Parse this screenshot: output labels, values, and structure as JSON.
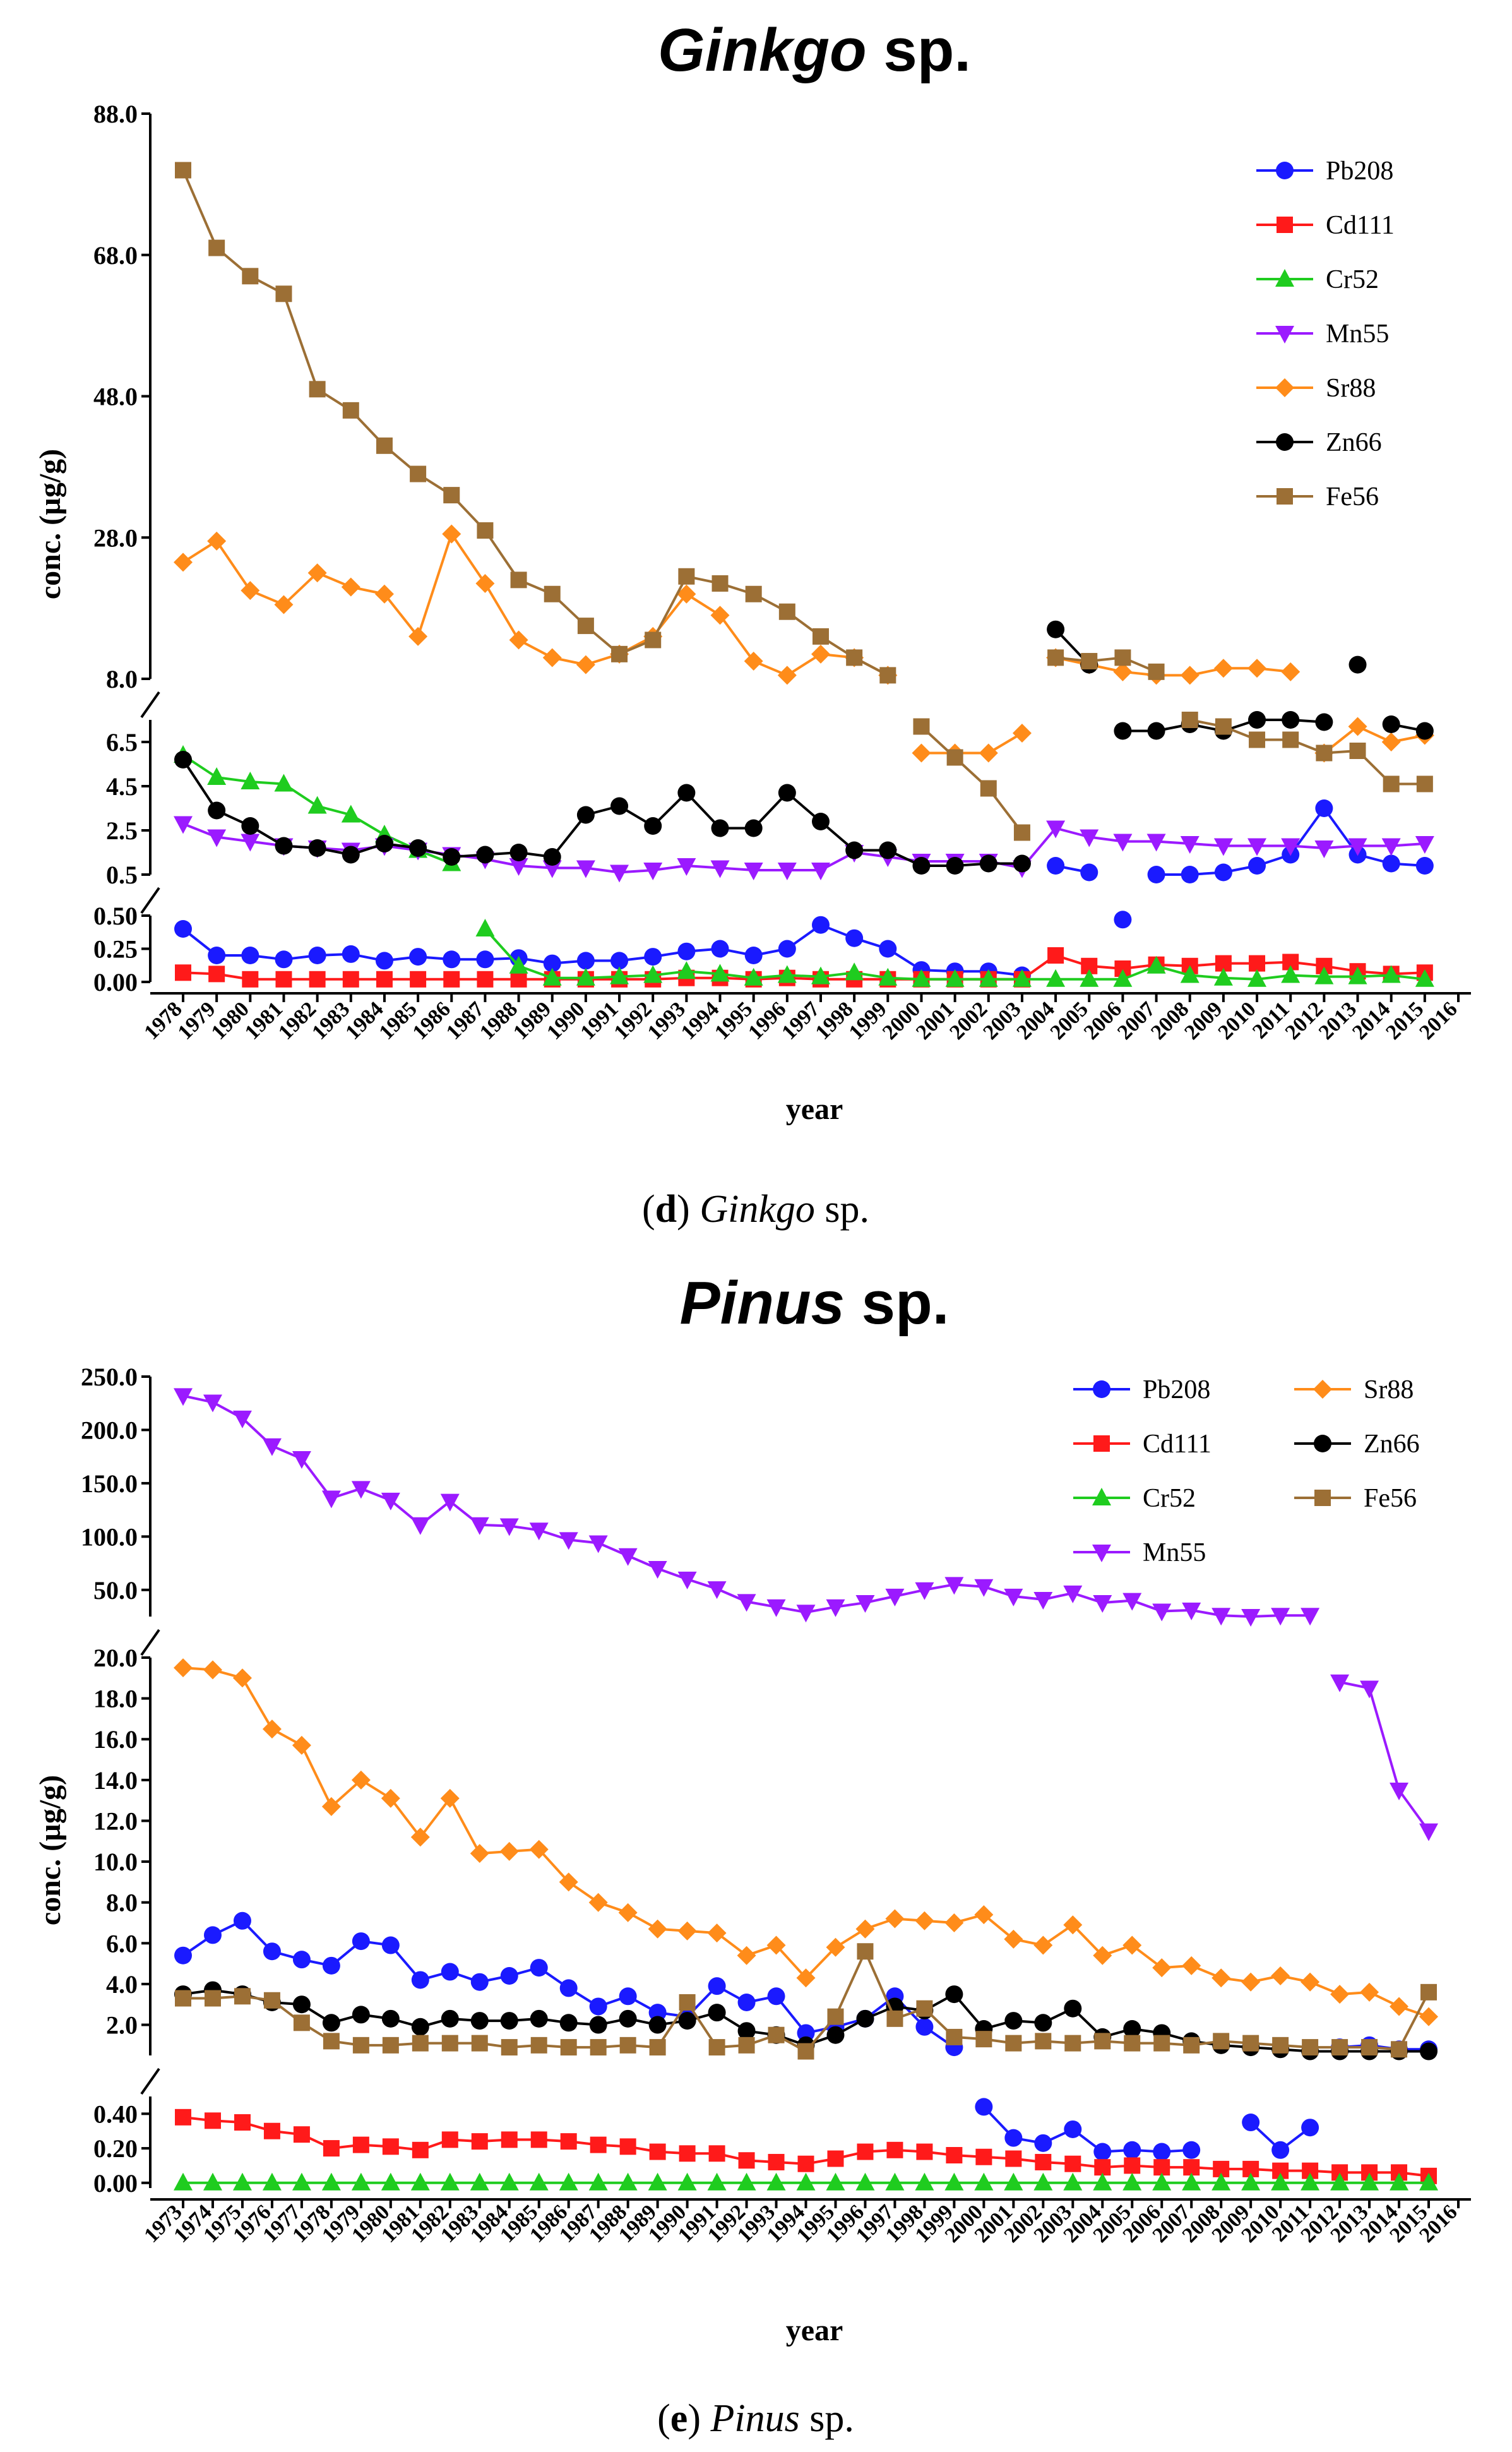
{
  "captions": [
    {
      "letter": "d",
      "genus": "Ginkgo",
      "suffix": " sp."
    },
    {
      "letter": "e",
      "genus": "Pinus",
      "suffix": " sp."
    }
  ],
  "chart_data": [
    {
      "type": "line",
      "title": "Ginkgo sp.",
      "title_genus": "Ginkgo",
      "title_suffix": " sp.",
      "xlabel": "year",
      "ylabel": "conc. (µg/g)",
      "categories": [
        "1978",
        "1979",
        "1980",
        "1981",
        "1982",
        "1983",
        "1984",
        "1985",
        "1986",
        "1987",
        "1988",
        "1989",
        "1990",
        "1991",
        "1992",
        "1993",
        "1994",
        "1995",
        "1996",
        "1997",
        "1998",
        "1999",
        "2000",
        "2001",
        "2002",
        "2003",
        "2004",
        "2005",
        "2006",
        "2007",
        "2008",
        "2009",
        "2010",
        "2011",
        "2012",
        "2013",
        "2014",
        "2015",
        "2016"
      ],
      "segments": [
        {
          "ylim": [
            8.0,
            88.0
          ],
          "ticks": [
            8.0,
            28.0,
            48.0,
            68.0,
            88.0
          ],
          "tick_labels": [
            "8.0",
            "28.0",
            "48.0",
            "68.0",
            "88.0"
          ]
        },
        {
          "ylim": [
            0.5,
            7.5
          ],
          "ticks": [
            0.5,
            2.5,
            4.5,
            6.5
          ],
          "tick_labels": [
            "0.5",
            "2.5",
            "4.5",
            "6.5"
          ]
        },
        {
          "ylim": [
            0.0,
            0.5
          ],
          "ticks": [
            0.0,
            0.25,
            0.5
          ],
          "tick_labels": [
            "0.00",
            "0.25",
            "0.50"
          ]
        }
      ],
      "legend": [
        "Pb208",
        "Cd111",
        "Cr52",
        "Mn55",
        "Sr88",
        "Zn66",
        "Fe56"
      ],
      "legend_position": "top-right",
      "series": [
        {
          "name": "Pb208",
          "color": "#1a1aff",
          "marker": "circle",
          "values": [
            0.4,
            0.2,
            0.2,
            0.17,
            0.2,
            0.21,
            0.16,
            0.19,
            0.17,
            0.17,
            0.18,
            0.14,
            0.16,
            0.16,
            0.19,
            0.23,
            0.25,
            0.2,
            0.25,
            0.43,
            0.33,
            0.25,
            0.09,
            0.08,
            0.08,
            0.05,
            0.9,
            0.6,
            0.47,
            0.5,
            0.5,
            0.6,
            0.9,
            1.4,
            3.5,
            1.4,
            1.0,
            0.9,
            null
          ]
        },
        {
          "name": "Cd111",
          "color": "#ff1a1a",
          "marker": "square",
          "values": [
            0.07,
            0.06,
            0.02,
            0.02,
            0.02,
            0.02,
            0.02,
            0.02,
            0.02,
            0.02,
            0.02,
            0.02,
            0.02,
            0.02,
            0.02,
            0.03,
            0.03,
            0.02,
            0.03,
            0.02,
            0.02,
            0.02,
            0.02,
            0.02,
            0.02,
            0.02,
            0.2,
            0.12,
            0.1,
            0.13,
            0.12,
            0.14,
            0.14,
            0.15,
            0.12,
            0.08,
            0.06,
            0.07,
            null
          ]
        },
        {
          "name": "Cr52",
          "color": "#1fcc1f",
          "marker": "triangle",
          "values": [
            5.9,
            4.9,
            4.7,
            4.6,
            3.6,
            3.2,
            2.3,
            1.6,
            1.0,
            0.4,
            0.12,
            0.03,
            0.03,
            0.04,
            0.05,
            0.08,
            0.06,
            0.03,
            0.05,
            0.04,
            0.07,
            0.03,
            0.02,
            0.02,
            0.02,
            0.02,
            0.02,
            0.02,
            0.02,
            0.12,
            0.05,
            0.03,
            0.02,
            0.05,
            0.04,
            0.04,
            0.05,
            0.02,
            null
          ]
        },
        {
          "name": "Mn55",
          "color": "#9b1aff",
          "marker": "triangle-down",
          "values": [
            2.8,
            2.2,
            2.0,
            1.8,
            1.7,
            1.6,
            1.8,
            1.6,
            1.4,
            1.2,
            0.9,
            0.8,
            0.8,
            0.6,
            0.7,
            0.9,
            0.8,
            0.7,
            0.7,
            0.7,
            1.5,
            1.3,
            1.1,
            1.1,
            1.1,
            0.8,
            2.6,
            2.2,
            2.0,
            2.0,
            1.9,
            1.8,
            1.8,
            1.8,
            1.7,
            1.8,
            1.8,
            1.9,
            null
          ]
        },
        {
          "name": "Sr88",
          "color": "#ff8c1a",
          "marker": "diamond",
          "values": [
            24.5,
            27.5,
            20.5,
            18.5,
            23.0,
            21.0,
            20.0,
            14.0,
            28.5,
            21.5,
            13.5,
            11.0,
            10.0,
            11.5,
            14.0,
            20.0,
            17.0,
            10.5,
            8.5,
            11.5,
            11.0,
            8.5,
            6.0,
            6.0,
            6.0,
            6.9,
            11.0,
            10.0,
            9.0,
            8.5,
            8.5,
            9.5,
            9.5,
            9.0,
            6.0,
            7.2,
            6.5,
            6.8,
            null
          ]
        },
        {
          "name": "Zn66",
          "color": "#000000",
          "marker": "circle",
          "values": [
            5.7,
            3.4,
            2.7,
            1.8,
            1.7,
            1.4,
            1.9,
            1.7,
            1.3,
            1.4,
            1.5,
            1.3,
            3.2,
            3.6,
            2.7,
            4.2,
            2.6,
            2.6,
            4.2,
            2.9,
            1.6,
            1.6,
            0.9,
            0.9,
            1.0,
            1.0,
            15.0,
            10.0,
            7.0,
            7.0,
            7.3,
            7.0,
            7.5,
            7.5,
            7.4,
            10.0,
            7.3,
            7.0,
            null
          ]
        },
        {
          "name": "Fe56",
          "color": "#9c6f35",
          "marker": "square",
          "values": [
            80.0,
            69.0,
            65.0,
            62.5,
            49.0,
            46.0,
            41.0,
            37.0,
            34.0,
            29.0,
            22.0,
            20.0,
            15.5,
            11.5,
            13.5,
            22.5,
            21.5,
            20.0,
            17.5,
            14.0,
            11.0,
            8.5,
            7.2,
            5.8,
            4.4,
            2.4,
            11.0,
            10.5,
            11.0,
            9.0,
            7.5,
            7.2,
            6.6,
            6.6,
            6.0,
            6.1,
            4.6,
            4.6,
            null
          ]
        }
      ]
    },
    {
      "type": "line",
      "title": "Pinus sp.",
      "title_genus": "Pinus",
      "title_suffix": " sp.",
      "xlabel": "year",
      "ylabel": "conc. (µg/g)",
      "categories": [
        "1973",
        "1974",
        "1975",
        "1976",
        "1977",
        "1978",
        "1979",
        "1980",
        "1981",
        "1982",
        "1983",
        "1984",
        "1985",
        "1986",
        "1987",
        "1988",
        "1989",
        "1990",
        "1991",
        "1992",
        "1993",
        "1994",
        "1995",
        "1996",
        "1997",
        "1998",
        "1999",
        "2000",
        "2001",
        "2002",
        "2003",
        "2004",
        "2005",
        "2006",
        "2007",
        "2008",
        "2009",
        "2010",
        "2011",
        "2012",
        "2013",
        "2014",
        "2015",
        "2016"
      ],
      "segments": [
        {
          "ylim": [
            25.0,
            250.0
          ],
          "ticks": [
            50.0,
            100.0,
            150.0,
            200.0,
            250.0
          ],
          "tick_labels": [
            "50.0",
            "100.0",
            "150.0",
            "200.0",
            "250.0"
          ]
        },
        {
          "ylim": [
            0.5,
            20.0
          ],
          "ticks": [
            2.0,
            4.0,
            6.0,
            8.0,
            10.0,
            12.0,
            14.0,
            16.0,
            18.0,
            20.0
          ],
          "tick_labels": [
            "2.0",
            "4.0",
            "6.0",
            "8.0",
            "10.0",
            "12.0",
            "14.0",
            "16.0",
            "18.0",
            "20.0"
          ]
        },
        {
          "ylim": [
            -0.03,
            0.5
          ],
          "ticks": [
            0.0,
            0.2,
            0.4
          ],
          "tick_labels": [
            "0.00",
            "0.20",
            "0.40"
          ]
        }
      ],
      "legend": [
        "Pb208",
        "Cd111",
        "Cr52",
        "Mn55",
        "Sr88",
        "Zn66",
        "Fe56"
      ],
      "legend_position": "top-right",
      "series": [
        {
          "name": "Pb208",
          "color": "#1a1aff",
          "marker": "circle",
          "values": [
            5.4,
            6.4,
            7.1,
            5.6,
            5.2,
            4.9,
            6.1,
            5.9,
            4.2,
            4.6,
            4.1,
            4.4,
            4.8,
            3.8,
            2.9,
            3.4,
            2.6,
            2.4,
            3.9,
            3.1,
            3.4,
            1.6,
            1.9,
            2.3,
            3.4,
            1.9,
            0.9,
            0.44,
            0.26,
            0.23,
            0.31,
            0.18,
            0.19,
            0.18,
            0.19,
            null,
            0.35,
            0.19,
            0.32,
            0.9,
            1.0,
            0.8,
            0.8,
            null
          ]
        },
        {
          "name": "Cd111",
          "color": "#ff1a1a",
          "marker": "square",
          "values": [
            0.38,
            0.36,
            0.35,
            0.3,
            0.28,
            0.2,
            0.22,
            0.21,
            0.19,
            0.25,
            0.24,
            0.25,
            0.25,
            0.24,
            0.22,
            0.21,
            0.18,
            0.17,
            0.17,
            0.13,
            0.12,
            0.11,
            0.14,
            0.18,
            0.19,
            0.18,
            0.16,
            0.15,
            0.14,
            0.12,
            0.11,
            0.09,
            0.1,
            0.09,
            0.09,
            0.08,
            0.08,
            0.07,
            0.07,
            0.06,
            0.06,
            0.06,
            0.04,
            null
          ]
        },
        {
          "name": "Cr52",
          "color": "#1fcc1f",
          "marker": "triangle",
          "values": [
            0.0,
            0.0,
            0.0,
            0.0,
            0.0,
            0.0,
            0.0,
            0.0,
            0.0,
            0.0,
            0.0,
            0.0,
            0.0,
            0.0,
            0.0,
            0.0,
            0.0,
            0.0,
            0.0,
            0.0,
            0.0,
            0.0,
            0.0,
            0.0,
            0.0,
            0.0,
            0.0,
            0.0,
            0.0,
            0.0,
            0.0,
            0.0,
            0.0,
            0.0,
            0.0,
            0.0,
            0.0,
            0.0,
            0.0,
            0.0,
            0.0,
            0.0,
            0.0,
            null
          ]
        },
        {
          "name": "Mn55",
          "color": "#9b1aff",
          "marker": "triangle-down",
          "values": [
            232,
            226,
            211,
            185,
            173,
            136,
            145,
            134,
            111,
            133,
            111,
            110,
            106,
            97,
            94,
            82,
            70,
            60,
            51,
            39,
            34,
            29,
            34,
            38,
            44,
            50,
            55,
            53,
            44,
            41,
            47,
            38,
            40,
            30,
            31,
            26,
            25,
            26,
            26,
            18.8,
            18.5,
            13.5,
            11.5,
            null
          ]
        },
        {
          "name": "Sr88",
          "color": "#ff8c1a",
          "marker": "diamond",
          "values": [
            19.5,
            19.4,
            19.0,
            16.5,
            15.7,
            12.7,
            14.0,
            13.1,
            11.2,
            13.1,
            10.4,
            10.5,
            10.6,
            9.0,
            8.0,
            7.5,
            6.7,
            6.6,
            6.5,
            5.4,
            5.9,
            4.3,
            5.8,
            6.7,
            7.2,
            7.1,
            7.0,
            7.4,
            6.2,
            5.9,
            6.9,
            5.4,
            5.9,
            4.8,
            4.9,
            4.3,
            4.1,
            4.4,
            4.1,
            3.5,
            3.6,
            2.9,
            2.4,
            null
          ]
        },
        {
          "name": "Zn66",
          "color": "#000000",
          "marker": "circle",
          "values": [
            3.5,
            3.7,
            3.5,
            3.1,
            3.0,
            2.1,
            2.5,
            2.3,
            1.9,
            2.3,
            2.2,
            2.2,
            2.3,
            2.1,
            2.0,
            2.3,
            2.0,
            2.2,
            2.6,
            1.7,
            1.5,
            1.0,
            1.5,
            2.3,
            2.9,
            2.7,
            3.5,
            1.8,
            2.2,
            2.1,
            2.8,
            1.4,
            1.8,
            1.6,
            1.2,
            1.0,
            0.9,
            0.8,
            0.7,
            0.7,
            0.7,
            0.7,
            0.7,
            null
          ]
        },
        {
          "name": "Fe56",
          "color": "#9c6f35",
          "marker": "square",
          "values": [
            3.3,
            3.3,
            3.4,
            3.2,
            2.1,
            1.2,
            1.0,
            1.0,
            1.1,
            1.1,
            1.1,
            0.9,
            1.0,
            0.9,
            0.9,
            1.0,
            0.9,
            3.1,
            0.9,
            1.0,
            1.5,
            0.7,
            2.4,
            5.6,
            2.3,
            2.8,
            1.4,
            1.3,
            1.1,
            1.2,
            1.1,
            1.2,
            1.1,
            1.1,
            1.0,
            1.2,
            1.1,
            1.0,
            0.9,
            0.9,
            0.9,
            0.8,
            3.6,
            null
          ]
        }
      ]
    }
  ]
}
